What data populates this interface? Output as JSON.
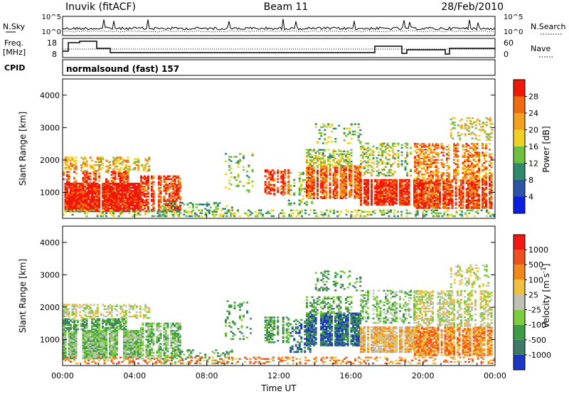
{
  "header": {
    "station": "Inuvik (fitACF)",
    "beam": "Beam 11",
    "date": "28/Feb/2010"
  },
  "summary_panels": {
    "nsky_label": "N.Sky",
    "nsky_ticks": [
      "10^5",
      "10^0"
    ],
    "nsearch_label": "N.Search",
    "nsearch_ticks": [
      "10^5",
      "10^0"
    ],
    "freq_label": "Freq.",
    "freq_unit": "[MHz]",
    "freq_ticks": [
      "18",
      "8"
    ],
    "nave_label": "Nave",
    "nave_ticks": [
      "60",
      "0"
    ],
    "cpid_label": "CPID",
    "cpid_text": "normalsound (fast) 157"
  },
  "chart_data": [
    {
      "type": "heatmap",
      "parameter": "Power",
      "ylabel": "Slant Range [km]",
      "xlabel": "",
      "ylim": [
        200,
        4500
      ],
      "yticks": [
        1000,
        2000,
        3000,
        4000
      ],
      "colorbar": {
        "label": "Power [dB]",
        "range": [
          0,
          32
        ],
        "ticks": [
          "4",
          "8",
          "12",
          "16",
          "20",
          "24",
          "28"
        ],
        "colors": [
          "#0a1fe0",
          "#2c55a8",
          "#2f8a6c",
          "#6ec040",
          "#f0d020",
          "#f2a020",
          "#f06a10",
          "#f01808"
        ]
      }
    },
    {
      "type": "heatmap",
      "parameter": "Velocity",
      "ylabel": "Slant Range [km]",
      "xlabel": "Time UT",
      "ylim": [
        200,
        4500
      ],
      "yticks": [
        1000,
        2000,
        3000,
        4000
      ],
      "xticks": [
        "00:00",
        "04:00",
        "08:00",
        "12:00",
        "16:00",
        "20:00",
        "00:00"
      ],
      "colorbar": {
        "label": "Velocity [m s^-1]",
        "ticks": [
          "1000",
          "500",
          "100",
          "25",
          "-25",
          "-100",
          "-500",
          "-1000"
        ],
        "colors": [
          "#1c36c8",
          "#3f7a68",
          "#3c9c48",
          "#7ccc3c",
          "#c0c0b8",
          "#f2c040",
          "#f0881a",
          "#f05020",
          "#f01810"
        ]
      }
    }
  ]
}
